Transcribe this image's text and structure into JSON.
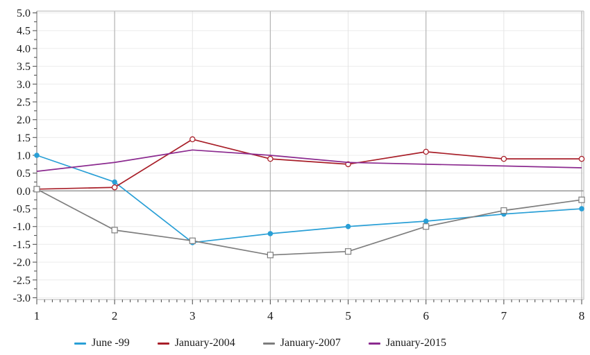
{
  "chart_data": {
    "type": "line",
    "title": "",
    "xlabel": "",
    "ylabel": "",
    "x": [
      1,
      2,
      3,
      4,
      5,
      6,
      7,
      8
    ],
    "x_tick_labels": [
      "1",
      "2",
      "3",
      "4",
      "5",
      "6",
      "7",
      "8"
    ],
    "xlim": [
      1,
      8
    ],
    "ylim": [
      -3.0,
      5.0
    ],
    "y_tick_step": 0.5,
    "y_minor_tick_step": 0.25,
    "x_minor_tick_step": 0.1,
    "grid": true,
    "major_vertical_gridlines": [
      2,
      4,
      6,
      8
    ],
    "minor_vertical_gridlines": [
      3,
      5,
      7
    ],
    "zero_line": true,
    "legend_position": "bottom",
    "series": [
      {
        "name": "June -99",
        "color": "#299fd6",
        "marker": "filled-circle",
        "values": [
          1.0,
          0.25,
          -1.45,
          -1.2,
          -1.0,
          -0.85,
          -0.65,
          -0.5
        ]
      },
      {
        "name": "January-2004",
        "color": "#a81e28",
        "marker": "open-circle",
        "values": [
          0.05,
          0.1,
          1.45,
          0.9,
          0.75,
          1.1,
          0.9,
          0.9
        ]
      },
      {
        "name": "January-2007",
        "color": "#7d7d7d",
        "marker": "open-square",
        "values": [
          0.05,
          -1.1,
          -1.4,
          -1.8,
          -1.7,
          -1.0,
          -0.55,
          -0.25
        ]
      },
      {
        "name": "January-2015",
        "color": "#8b2a8f",
        "marker": "none",
        "values": [
          0.55,
          0.8,
          1.15,
          1.0,
          0.8,
          0.75,
          0.7,
          0.65
        ]
      }
    ],
    "colors": {
      "plot_border": "#c2c2c2",
      "axis_line": "#8a8a8a",
      "tick": "#555555",
      "major_grid": "#b3b3b3",
      "minor_grid_h": "#ececec",
      "minor_grid_v": "#e4e4e4",
      "zero_line": "#8f8f8f",
      "text": "#1a1a1a",
      "background": "#ffffff"
    }
  }
}
